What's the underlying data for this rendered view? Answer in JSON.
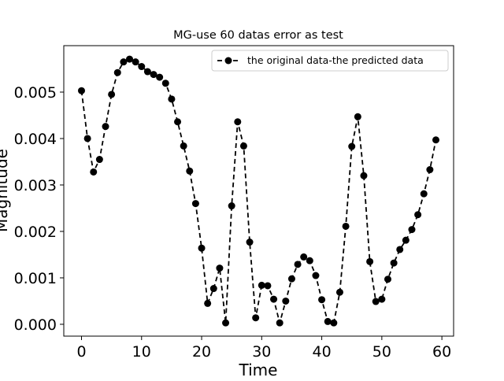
{
  "chart_data": {
    "type": "line",
    "title": "MG-use 60 datas error as test",
    "xlabel": "Time",
    "ylabel": "Magnitude",
    "xlim": [
      -2.95,
      61.95
    ],
    "ylim": [
      -0.000255,
      0.006
    ],
    "xticks": [
      0,
      10,
      20,
      30,
      40,
      50,
      60
    ],
    "xtick_labels": [
      "0",
      "10",
      "20",
      "30",
      "40",
      "50",
      "60"
    ],
    "yticks": [
      0.0,
      0.001,
      0.002,
      0.003,
      0.004,
      0.005
    ],
    "ytick_labels": [
      "0.000",
      "0.001",
      "0.002",
      "0.003",
      "0.004",
      "0.005"
    ],
    "legend_position": "top-right",
    "grid": false,
    "series": [
      {
        "name": "the original data-the predicted data",
        "color": "#000000",
        "line_style": "dashed",
        "marker": "circle",
        "x": [
          0,
          1,
          2,
          3,
          4,
          5,
          6,
          7,
          8,
          9,
          10,
          11,
          12,
          13,
          14,
          15,
          16,
          17,
          18,
          19,
          20,
          21,
          22,
          23,
          24,
          25,
          26,
          27,
          28,
          29,
          30,
          31,
          32,
          33,
          34,
          35,
          36,
          37,
          38,
          39,
          40,
          41,
          42,
          43,
          44,
          45,
          46,
          47,
          48,
          49,
          50,
          51,
          52,
          53,
          54,
          55,
          56,
          57,
          58,
          59
        ],
        "values": [
          0.00503,
          0.004,
          0.00328,
          0.00355,
          0.00426,
          0.00495,
          0.00542,
          0.00565,
          0.00571,
          0.00565,
          0.00555,
          0.00544,
          0.00538,
          0.00532,
          0.00519,
          0.00485,
          0.00436,
          0.00384,
          0.0033,
          0.0026,
          0.00164,
          0.00045,
          0.00077,
          0.00121,
          3e-05,
          0.00255,
          0.00436,
          0.00384,
          0.00177,
          0.00014,
          0.00084,
          0.00083,
          0.00054,
          3e-05,
          0.0005,
          0.00098,
          0.00129,
          0.00145,
          0.00137,
          0.00105,
          0.00053,
          6e-05,
          3e-05,
          0.00069,
          0.00211,
          0.00383,
          0.00447,
          0.0032,
          0.00135,
          0.00049,
          0.00054,
          0.00097,
          0.00132,
          0.00161,
          0.00181,
          0.00204,
          0.00236,
          0.00281,
          0.00333,
          0.00397
        ]
      }
    ]
  }
}
